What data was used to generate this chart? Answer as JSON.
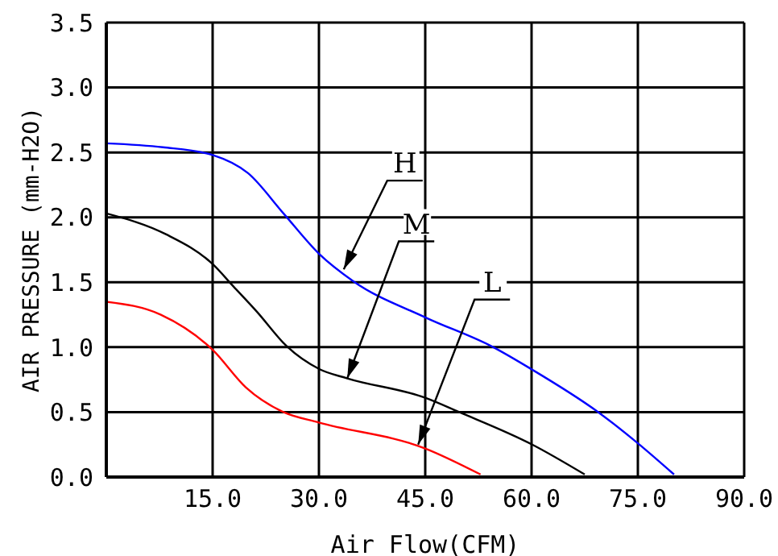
{
  "chart_data": {
    "type": "line",
    "xlabel": "Air Flow(CFM)",
    "ylabel": "AIR PRESSURE (mm-H2O)",
    "xlim": [
      0,
      90
    ],
    "xticks": [
      {
        "value": 15,
        "label": "15.0"
      },
      {
        "value": 30,
        "label": "30.0"
      },
      {
        "value": 45,
        "label": "45.0"
      },
      {
        "value": 60,
        "label": "60.0"
      },
      {
        "value": 75,
        "label": "75.0"
      },
      {
        "value": 90,
        "label": "90.0"
      }
    ],
    "ylim": [
      0,
      3.5
    ],
    "yticks": [
      {
        "value": 0,
        "label": "0.0"
      },
      0.5,
      {
        "value": 1,
        "label": "1.0"
      },
      1.5,
      {
        "value": 2,
        "label": "2.0"
      },
      2.5,
      {
        "value": 3,
        "label": "3.0"
      },
      3.5
    ],
    "grid": true,
    "marker": "none",
    "line_style": "solid",
    "legend": false,
    "series": [
      {
        "color": "#0000ff",
        "x": [
          0,
          8,
          15,
          20,
          25,
          30,
          34.8,
          45,
          54.6,
          60,
          69.4,
          75,
          80.1
        ],
        "values": [
          2.57,
          2.54,
          2.48,
          2.34,
          2.03,
          1.72,
          1.51,
          1.23,
          1.0,
          0.83,
          0.5,
          0.26,
          0.02
        ]
      },
      {
        "color": "#000000",
        "x": [
          0,
          8.4,
          15,
          17.9,
          21.3,
          25.4,
          30.1,
          34,
          45,
          49.8,
          60.1,
          67.5
        ],
        "values": [
          2.03,
          1.87,
          1.64,
          1.47,
          1.27,
          1.01,
          0.83,
          0.76,
          0.61,
          0.5,
          0.25,
          0.02
        ]
      },
      {
        "color": "#ff0000",
        "x": [
          0,
          7.7,
          15,
          19.7,
          25,
          30,
          45,
          52.8
        ],
        "values": [
          1.35,
          1.25,
          0.98,
          0.69,
          0.5,
          0.42,
          0.22,
          0.02
        ]
      }
    ],
    "annotations": [
      {
        "text": "H",
        "x": 33.5,
        "y": 1.6
      },
      {
        "text": "M",
        "x": 34,
        "y": 0.76
      },
      {
        "text": "L",
        "x": 44,
        "y": 0.25
      }
    ]
  }
}
